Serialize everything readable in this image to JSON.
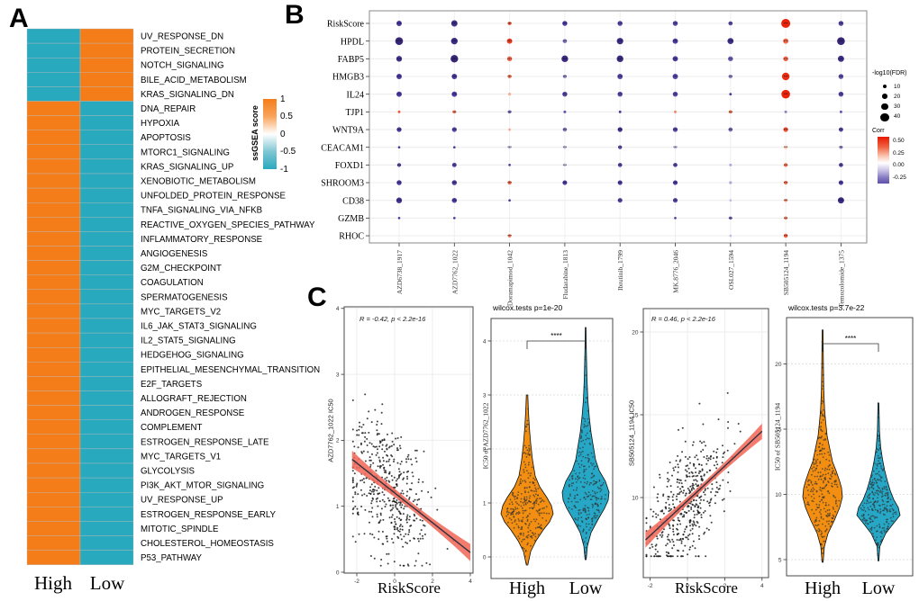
{
  "figure": {
    "panel_a_label": "A",
    "panel_b_label": "B",
    "panel_c_label": "C"
  },
  "chart_data": [
    {
      "id": "ssgsea-heatmap",
      "type": "heatmap",
      "columns": [
        "High",
        "Low"
      ],
      "legend_title": "ssGSEA score",
      "legend_ticks": [
        "1",
        "0.5",
        "0",
        "-0.5",
        "-1"
      ],
      "colors": {
        "positive": "#F57D19",
        "negative": "#29A9BE"
      },
      "value_range": [
        -1,
        1
      ],
      "rows": [
        [
          "UV_RESPONSE_DN",
          -1,
          1
        ],
        [
          "PROTEIN_SECRETION",
          -1,
          1
        ],
        [
          "NOTCH_SIGNALING",
          -1,
          1
        ],
        [
          "BILE_ACID_METABOLISM",
          -1,
          1
        ],
        [
          "KRAS_SIGNALING_DN",
          -1,
          1
        ],
        [
          "DNA_REPAIR",
          1,
          -1
        ],
        [
          "HYPOXIA",
          1,
          -1
        ],
        [
          "APOPTOSIS",
          1,
          -1
        ],
        [
          "MTORC1_SIGNALING",
          1,
          -1
        ],
        [
          "KRAS_SIGNALING_UP",
          1,
          -1
        ],
        [
          "XENOBIOTIC_METABOLISM",
          1,
          -1
        ],
        [
          "UNFOLDED_PROTEIN_RESPONSE",
          1,
          -1
        ],
        [
          "TNFA_SIGNALING_VIA_NFKB",
          1,
          -1
        ],
        [
          "REACTIVE_OXYGEN_SPECIES_PATHWAY",
          1,
          -1
        ],
        [
          "INFLAMMATORY_RESPONSE",
          1,
          -1
        ],
        [
          "ANGIOGENESIS",
          1,
          -1
        ],
        [
          "G2M_CHECKPOINT",
          1,
          -1
        ],
        [
          "COAGULATION",
          1,
          -1
        ],
        [
          "SPERMATOGENESIS",
          1,
          -1
        ],
        [
          "MYC_TARGETS_V2",
          1,
          -1
        ],
        [
          "IL6_JAK_STAT3_SIGNALING",
          1,
          -1
        ],
        [
          "IL2_STAT5_SIGNALING",
          1,
          -1
        ],
        [
          "HEDGEHOG_SIGNALING",
          1,
          -1
        ],
        [
          "EPITHELIAL_MESENCHYMAL_TRANSITION",
          1,
          -1
        ],
        [
          "E2F_TARGETS",
          1,
          -1
        ],
        [
          "ALLOGRAFT_REJECTION",
          1,
          -1
        ],
        [
          "ANDROGEN_RESPONSE",
          1,
          -1
        ],
        [
          "COMPLEMENT",
          1,
          -1
        ],
        [
          "ESTROGEN_RESPONSE_LATE",
          1,
          -1
        ],
        [
          "MYC_TARGETS_V1",
          1,
          -1
        ],
        [
          "GLYCOLYSIS",
          1,
          -1
        ],
        [
          "PI3K_AKT_MTOR_SIGNALING",
          1,
          -1
        ],
        [
          "UV_RESPONSE_UP",
          1,
          -1
        ],
        [
          "ESTROGEN_RESPONSE_EARLY",
          1,
          -1
        ],
        [
          "MITOTIC_SPINDLE",
          1,
          -1
        ],
        [
          "CHOLESTEROL_HOMEOSTASIS",
          1,
          -1
        ],
        [
          "P53_PATHWAY",
          1,
          -1
        ]
      ]
    },
    {
      "id": "gene-drug-dotplot",
      "type": "scatter",
      "genes": [
        "RiskScore",
        "HPDL",
        "FABP5",
        "HMGB3",
        "IL24",
        "TJP1",
        "WNT9A",
        "CEACAM1",
        "FOXD1",
        "SHROOM3",
        "CD38",
        "GZMB",
        "RHOC"
      ],
      "drugs": [
        "AZD6738_1917",
        "AZD7762_1022",
        "Doramapimod_1042",
        "Fludarabine_1813",
        "Ibrutinib_1799",
        "MK.8776_2046",
        "OSI.027_1594",
        "SB505124_1194",
        "Temozolomide_1375"
      ],
      "size_legend_title": "-log10(FDR)",
      "size_legend_values": [
        "10",
        "20",
        "30",
        "40"
      ],
      "color_legend_title": "Corr",
      "color_legend_ticks": [
        "0.50",
        "0.25",
        "0.00",
        "-0.25"
      ],
      "color_stops": [
        [
          -0.42,
          "#281566"
        ],
        [
          -0.3,
          "#42329B"
        ],
        [
          -0.2,
          "#6F63B5"
        ],
        [
          -0.1,
          "#ABA3D6"
        ],
        [
          -0.03,
          "#E6E3F3"
        ],
        [
          0.03,
          "#FBEAE2"
        ],
        [
          0.12,
          "#F8BBA0"
        ],
        [
          0.3,
          "#F06A4A"
        ],
        [
          0.45,
          "#EA3517"
        ],
        [
          0.55,
          "#E81800"
        ]
      ],
      "cells": [
        [
          [
            20,
            -0.32
          ],
          [
            25,
            -0.36
          ],
          [
            10,
            0.4
          ],
          [
            18,
            -0.3
          ],
          [
            18,
            -0.28
          ],
          [
            18,
            -0.28
          ],
          [
            14,
            -0.26
          ],
          [
            40,
            0.55
          ],
          [
            18,
            -0.28
          ]
        ],
        [
          [
            33,
            -0.4
          ],
          [
            27,
            -0.37
          ],
          [
            20,
            0.45
          ],
          [
            14,
            -0.18
          ],
          [
            26,
            -0.37
          ],
          [
            20,
            -0.3
          ],
          [
            24,
            -0.36
          ],
          [
            20,
            0.33
          ],
          [
            33,
            -0.4
          ]
        ],
        [
          [
            22,
            -0.35
          ],
          [
            32,
            -0.4
          ],
          [
            18,
            0.33
          ],
          [
            27,
            -0.38
          ],
          [
            27,
            -0.38
          ],
          [
            20,
            -0.3
          ],
          [
            18,
            -0.22
          ],
          [
            18,
            0.33
          ],
          [
            25,
            -0.36
          ]
        ],
        [
          [
            20,
            -0.3
          ],
          [
            20,
            -0.32
          ],
          [
            11,
            0.3
          ],
          [
            11,
            -0.15
          ],
          [
            20,
            -0.28
          ],
          [
            20,
            -0.28
          ],
          [
            12,
            -0.16
          ],
          [
            32,
            0.52
          ],
          [
            18,
            -0.26
          ]
        ],
        [
          [
            20,
            -0.3
          ],
          [
            20,
            -0.3
          ],
          [
            7,
            0.15
          ],
          [
            18,
            -0.28
          ],
          [
            18,
            -0.28
          ],
          [
            18,
            -0.28
          ],
          [
            5,
            -0.32
          ],
          [
            38,
            0.55
          ],
          [
            18,
            -0.28
          ]
        ],
        [
          [
            5,
            0.38
          ],
          [
            9,
            0.3
          ],
          [
            9,
            -0.2
          ],
          [
            6,
            -0.25
          ],
          [
            5,
            -0.32
          ],
          [
            5,
            0.26
          ],
          [
            9,
            0.3
          ],
          [
            6,
            -0.16
          ],
          [
            5,
            -0.26
          ]
        ],
        [
          [
            17,
            -0.3
          ],
          [
            17,
            -0.28
          ],
          [
            5,
            0.16
          ],
          [
            13,
            -0.18
          ],
          [
            17,
            -0.34
          ],
          [
            17,
            -0.28
          ],
          [
            14,
            -0.2
          ],
          [
            17,
            0.4
          ],
          [
            15,
            -0.28
          ]
        ],
        [
          [
            4,
            -0.32
          ],
          [
            4,
            -0.32
          ],
          [
            8,
            -0.08
          ],
          [
            8,
            -0.08
          ],
          [
            12,
            -0.26
          ],
          [
            8,
            -0.08
          ],
          [
            0,
            0
          ],
          [
            9,
            0.12
          ],
          [
            9,
            -0.16
          ]
        ],
        [
          [
            12,
            -0.28
          ],
          [
            15,
            -0.28
          ],
          [
            4,
            -0.32
          ],
          [
            8,
            -0.07
          ],
          [
            14,
            -0.28
          ],
          [
            14,
            -0.28
          ],
          [
            6,
            -0.1
          ],
          [
            12,
            0.3
          ],
          [
            14,
            -0.28
          ]
        ],
        [
          [
            18,
            -0.3
          ],
          [
            18,
            -0.3
          ],
          [
            12,
            0.33
          ],
          [
            16,
            -0.3
          ],
          [
            16,
            -0.3
          ],
          [
            16,
            -0.3
          ],
          [
            7,
            -0.1
          ],
          [
            12,
            0.3
          ],
          [
            16,
            -0.3
          ]
        ],
        [
          [
            22,
            -0.34
          ],
          [
            18,
            -0.3
          ],
          [
            4,
            -0.32
          ],
          [
            0,
            0
          ],
          [
            16,
            -0.28
          ],
          [
            16,
            -0.28
          ],
          [
            4,
            -0.08
          ],
          [
            8,
            0.26
          ],
          [
            25,
            -0.37
          ]
        ],
        [
          [
            4,
            -0.32
          ],
          [
            4,
            -0.32
          ],
          [
            0,
            0
          ],
          [
            0,
            0
          ],
          [
            0,
            0
          ],
          [
            4,
            -0.32
          ],
          [
            8,
            -0.22
          ],
          [
            8,
            0.28
          ],
          [
            0,
            0
          ]
        ],
        [
          [
            0,
            0
          ],
          [
            0,
            0
          ],
          [
            9,
            0.3
          ],
          [
            0,
            0
          ],
          [
            0,
            0
          ],
          [
            0,
            0
          ],
          [
            4,
            -0.08
          ],
          [
            13,
            0.34
          ],
          [
            0,
            0
          ]
        ]
      ]
    },
    {
      "id": "riskscore-azd7762-scatter",
      "type": "scatter",
      "annotation": "R = -0.42, p < 2.2e-16",
      "R": -0.42,
      "p": "< 2.2e-16",
      "xlabel": "RiskScore",
      "ylabel": "AZD7762_1022 IC50",
      "x_ticks": [
        -2,
        0,
        2,
        4
      ],
      "y_ticks": [
        0,
        1,
        2,
        3,
        4
      ],
      "xlim": [
        -2.5,
        4.3
      ],
      "ylim": [
        0,
        4.05
      ],
      "n_points": 470,
      "seed": 101,
      "x_mean": -0.3,
      "x_sd": 1.05,
      "x_clip": [
        -2.2,
        3.95
      ],
      "intercept": 1.203,
      "slope": -0.226,
      "noise_sd": 0.52,
      "y_clip": [
        0.1,
        3.82
      ],
      "line_x": [
        -2.25,
        4.0
      ],
      "band_color": "#F26A5B",
      "line_color": "#32323E",
      "point_color": "#161616",
      "grid": true,
      "legend": "none"
    },
    {
      "id": "azd7762-violin",
      "type": "violin",
      "title": "wilcox.tests p=1e-20",
      "ylabel": "IC50 of AZD7762_1022",
      "y_ticks": [
        0,
        1,
        2,
        3,
        4
      ],
      "groups": [
        "High",
        "Low"
      ],
      "group_colors": [
        "#F28E11",
        "#26A7C6"
      ],
      "significance": "****",
      "n_points": 270,
      "seeds": [
        21,
        22
      ],
      "profiles": {
        "high": [
          [
            -0.15,
            0.8
          ],
          [
            0.1,
            4
          ],
          [
            0.3,
            10
          ],
          [
            0.5,
            18
          ],
          [
            0.65,
            25
          ],
          [
            0.8,
            29
          ],
          [
            0.95,
            27
          ],
          [
            1.1,
            22
          ],
          [
            1.3,
            14
          ],
          [
            1.5,
            9
          ],
          [
            1.8,
            6
          ],
          [
            2.1,
            4
          ],
          [
            2.4,
            2.5
          ],
          [
            2.7,
            1.5
          ],
          [
            3.0,
            0.8
          ]
        ],
        "low": [
          [
            -0.05,
            0.6
          ],
          [
            0.2,
            2
          ],
          [
            0.45,
            6
          ],
          [
            0.7,
            14
          ],
          [
            0.9,
            21
          ],
          [
            1.05,
            25
          ],
          [
            1.2,
            26
          ],
          [
            1.4,
            22
          ],
          [
            1.6,
            15
          ],
          [
            1.8,
            11
          ],
          [
            2.0,
            9
          ],
          [
            2.3,
            6
          ],
          [
            2.6,
            4
          ],
          [
            2.9,
            2.5
          ],
          [
            3.3,
            1.5
          ],
          [
            3.8,
            0.8
          ],
          [
            4.25,
            0.4
          ]
        ]
      }
    },
    {
      "id": "riskscore-sb505124-scatter",
      "type": "scatter",
      "annotation": "R = 0.46, p < 2.2e-16",
      "R": 0.46,
      "p": "< 2.2e-16",
      "xlabel": "RiskScore",
      "ylabel": "SB505124_1194 IC50",
      "x_ticks": [
        -2,
        0,
        2,
        4
      ],
      "y_ticks": [
        10,
        15,
        20
      ],
      "xlim": [
        -2.5,
        4.3
      ],
      "ylim": [
        5.4,
        21.4
      ],
      "n_points": 470,
      "seed": 202,
      "x_mean": -0.1,
      "x_sd": 1.05,
      "x_clip": [
        -2.2,
        3.95
      ],
      "intercept": 9.8,
      "slope": 1.05,
      "noise_sd": 1.55,
      "y_clip": [
        6.45,
        20.9
      ],
      "line_x": [
        -2.25,
        4.0
      ],
      "band_color": "#F26A5B",
      "line_color": "#32323E",
      "point_color": "#161616",
      "grid": true,
      "legend": "none"
    },
    {
      "id": "sb505124-violin",
      "type": "violin",
      "title": "wilcox.tests p=3.7e-22",
      "ylabel": "IC50 of SB505124_1194",
      "y_ticks": [
        5,
        10,
        15,
        20
      ],
      "groups": [
        "High",
        "Low"
      ],
      "group_colors": [
        "#F28E11",
        "#26A7C6"
      ],
      "significance": "****",
      "n_points": 270,
      "seeds": [
        23,
        24
      ],
      "profiles": {
        "high": [
          [
            4.8,
            0.6
          ],
          [
            6,
            2
          ],
          [
            7,
            6
          ],
          [
            8,
            13
          ],
          [
            9,
            19
          ],
          [
            9.8,
            22
          ],
          [
            10.5,
            21
          ],
          [
            11,
            19
          ],
          [
            11.8,
            15
          ],
          [
            12.5,
            11
          ],
          [
            13.5,
            8
          ],
          [
            14.5,
            5
          ],
          [
            15.5,
            3.5
          ],
          [
            16.5,
            2.2
          ],
          [
            18,
            1.3
          ],
          [
            20,
            0.9
          ],
          [
            22.6,
            0.5
          ]
        ],
        "low": [
          [
            4.9,
            0.5
          ],
          [
            6,
            1.5
          ],
          [
            7,
            8
          ],
          [
            7.8,
            17
          ],
          [
            8.4,
            24
          ],
          [
            9,
            22
          ],
          [
            9.6,
            17
          ],
          [
            10.3,
            13
          ],
          [
            11,
            10
          ],
          [
            11.8,
            7
          ],
          [
            12.7,
            4.5
          ],
          [
            13.6,
            2.5
          ],
          [
            14.8,
            1.2
          ],
          [
            17,
            0.5
          ]
        ]
      }
    }
  ]
}
